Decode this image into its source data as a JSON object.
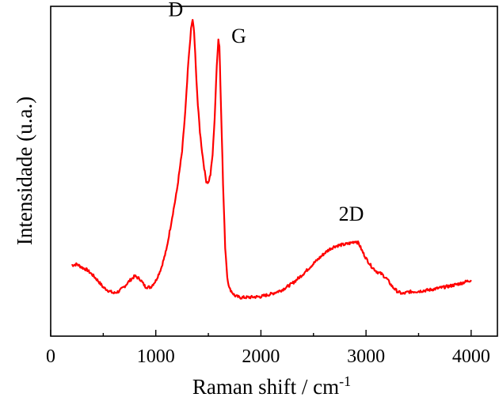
{
  "chart_data": {
    "type": "line",
    "title": "",
    "xlabel": "Raman shift / cm",
    "xlabel_superscript": "-1",
    "ylabel": "Intensidade (u.a.)",
    "xlim": [
      0,
      4250
    ],
    "ylim": [
      0,
      100
    ],
    "xticks": [
      0,
      1000,
      2000,
      3000,
      4000
    ],
    "xtick_labels": [
      "0",
      "1000",
      "2000",
      "3000",
      "4000"
    ],
    "y_ticks_labeled": false,
    "grid": false,
    "series": [
      {
        "color": "#ff0000",
        "x": [
          200,
          250,
          300,
          350,
          400,
          450,
          500,
          550,
          600,
          650,
          700,
          750,
          800,
          850,
          900,
          950,
          1000,
          1050,
          1100,
          1150,
          1200,
          1250,
          1280,
          1310,
          1335,
          1350,
          1365,
          1380,
          1400,
          1420,
          1440,
          1460,
          1480,
          1500,
          1520,
          1540,
          1560,
          1580,
          1595,
          1605,
          1620,
          1640,
          1660,
          1680,
          1700,
          1750,
          1800,
          1900,
          2000,
          2100,
          2200,
          2300,
          2400,
          2500,
          2600,
          2650,
          2700,
          2750,
          2800,
          2850,
          2900,
          2930,
          2960,
          3000,
          3050,
          3100,
          3150,
          3200,
          3250,
          3300,
          3350,
          3400,
          3500,
          3600,
          3700,
          3800,
          3900,
          4000
        ],
        "y": [
          21.5,
          21.8,
          20.8,
          20.0,
          18.5,
          16.8,
          14.8,
          13.8,
          13.0,
          13.6,
          15.0,
          16.8,
          18.2,
          17.3,
          15.0,
          14.8,
          16.8,
          20.5,
          26.0,
          35.0,
          44.0,
          56.0,
          68.0,
          83.0,
          93.0,
          96.0,
          92.0,
          82.0,
          70.0,
          62.0,
          56.0,
          51.0,
          47.0,
          46.5,
          49.0,
          55.0,
          66.0,
          82.0,
          90.0,
          88.0,
          70.0,
          46.0,
          27.0,
          18.0,
          14.5,
          12.3,
          11.7,
          11.8,
          12.0,
          12.8,
          14.0,
          16.0,
          18.8,
          22.0,
          25.0,
          26.3,
          27.2,
          27.6,
          27.8,
          28.2,
          28.8,
          28.2,
          26.0,
          23.6,
          21.2,
          19.6,
          18.8,
          17.3,
          15.0,
          13.5,
          12.8,
          13.4,
          13.6,
          14.0,
          14.6,
          15.2,
          16.0,
          17.0
        ]
      }
    ],
    "annotations": [
      {
        "text": "D",
        "x": 1190,
        "y": 97
      },
      {
        "text": "G",
        "x": 1790,
        "y": 89
      },
      {
        "text": "2D",
        "x": 2860,
        "y": 35
      }
    ]
  }
}
